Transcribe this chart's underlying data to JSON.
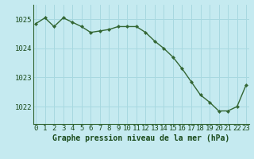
{
  "x": [
    0,
    1,
    2,
    3,
    4,
    5,
    6,
    7,
    8,
    9,
    10,
    11,
    12,
    13,
    14,
    15,
    16,
    17,
    18,
    19,
    20,
    21,
    22,
    23
  ],
  "y": [
    1024.85,
    1025.05,
    1024.75,
    1025.05,
    1024.9,
    1024.75,
    1024.55,
    1024.6,
    1024.65,
    1024.75,
    1024.75,
    1024.75,
    1024.55,
    1024.25,
    1024.0,
    1023.7,
    1023.3,
    1022.85,
    1022.4,
    1022.15,
    1021.85,
    1021.85,
    1022.0,
    1022.75
  ],
  "xlim": [
    -0.3,
    23.3
  ],
  "ylim": [
    1021.4,
    1025.5
  ],
  "yticks": [
    1022,
    1023,
    1024,
    1025
  ],
  "xticks": [
    0,
    1,
    2,
    3,
    4,
    5,
    6,
    7,
    8,
    9,
    10,
    11,
    12,
    13,
    14,
    15,
    16,
    17,
    18,
    19,
    20,
    21,
    22,
    23
  ],
  "line_color": "#336633",
  "marker_color": "#336633",
  "bg_color": "#c5eaf0",
  "grid_color": "#a8d8e0",
  "xlabel": "Graphe pression niveau de la mer (hPa)",
  "xlabel_color": "#1a4a1a",
  "tick_color": "#1a4a1a",
  "axis_color": "#336633",
  "font_size_label": 7.0,
  "font_size_tick": 6.5
}
